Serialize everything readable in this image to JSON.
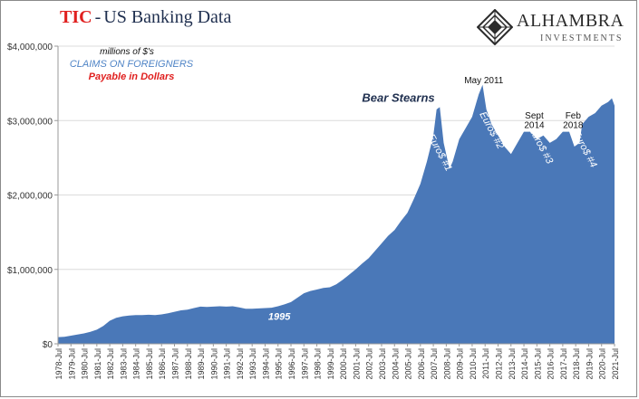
{
  "header": {
    "title_red": "TIC",
    "title_sep": "-",
    "title_rest": "US Banking Data"
  },
  "logo": {
    "name": "ALHAMBRA",
    "subtitle": "INVESTMENTS"
  },
  "notes": {
    "units": "millions of $'s",
    "series_label": "CLAIMS ON FOREIGNERS",
    "series_sublabel": "Payable in Dollars"
  },
  "colors": {
    "area": "#4a78b8",
    "title_red": "#e0201f",
    "navy": "#1f2f4f",
    "series_label": "#4f84c6",
    "sublabel_red": "#e0201f"
  },
  "chart_data": {
    "type": "area",
    "title": "TIC - US Banking Data",
    "ylim": [
      0,
      4000000
    ],
    "y_ticks": [
      0,
      1000000,
      2000000,
      3000000,
      4000000
    ],
    "y_tick_labels": [
      "$0",
      "$1,000,000",
      "$2,000,000",
      "$3,000,000",
      "$4,000,000"
    ],
    "x_tick_labels": [
      "1978-Jul",
      "1979-Jul",
      "1980-Jul",
      "1981-Jul",
      "1982-Jul",
      "1983-Jul",
      "1984-Jul",
      "1985-Jul",
      "1986-Jul",
      "1987-Jul",
      "1988-Jul",
      "1989-Jul",
      "1990-Jul",
      "1991-Jul",
      "1992-Jul",
      "1993-Jul",
      "1994-Jul",
      "1995-Jul",
      "1996-Jul",
      "1997-Jul",
      "1998-Jul",
      "1999-Jul",
      "2000-Jul",
      "2001-Jul",
      "2002-Jul",
      "2003-Jul",
      "2004-Jul",
      "2005-Jul",
      "2006-Jul",
      "2007-Jul",
      "2008-Jul",
      "2009-Jul",
      "2010-Jul",
      "2011-Jul",
      "2012-Jul",
      "2013-Jul",
      "2014-Jul",
      "2015-Jul",
      "2016-Jul",
      "2017-Jul",
      "2018-Jul",
      "2019-Jul",
      "2020-Jul",
      "2021-Jul"
    ],
    "series": [
      {
        "points": [
          [
            1978.5,
            90000
          ],
          [
            1979.0,
            95000
          ],
          [
            1979.5,
            110000
          ],
          [
            1980.0,
            125000
          ],
          [
            1980.5,
            140000
          ],
          [
            1981.0,
            160000
          ],
          [
            1981.5,
            190000
          ],
          [
            1982.0,
            240000
          ],
          [
            1982.5,
            310000
          ],
          [
            1983.0,
            350000
          ],
          [
            1983.5,
            370000
          ],
          [
            1984.0,
            380000
          ],
          [
            1984.5,
            385000
          ],
          [
            1985.0,
            385000
          ],
          [
            1985.5,
            390000
          ],
          [
            1986.0,
            385000
          ],
          [
            1986.5,
            395000
          ],
          [
            1987.0,
            410000
          ],
          [
            1987.5,
            430000
          ],
          [
            1988.0,
            450000
          ],
          [
            1988.5,
            460000
          ],
          [
            1989.0,
            480000
          ],
          [
            1989.5,
            500000
          ],
          [
            1990.0,
            495000
          ],
          [
            1990.5,
            500000
          ],
          [
            1991.0,
            505000
          ],
          [
            1991.5,
            500000
          ],
          [
            1992.0,
            505000
          ],
          [
            1992.5,
            490000
          ],
          [
            1993.0,
            470000
          ],
          [
            1993.5,
            470000
          ],
          [
            1994.0,
            475000
          ],
          [
            1994.5,
            480000
          ],
          [
            1995.0,
            485000
          ],
          [
            1995.5,
            505000
          ],
          [
            1996.0,
            530000
          ],
          [
            1996.5,
            560000
          ],
          [
            1997.0,
            620000
          ],
          [
            1997.5,
            680000
          ],
          [
            1998.0,
            710000
          ],
          [
            1998.5,
            730000
          ],
          [
            1999.0,
            750000
          ],
          [
            1999.5,
            760000
          ],
          [
            2000.0,
            800000
          ],
          [
            2000.5,
            860000
          ],
          [
            2001.0,
            930000
          ],
          [
            2001.5,
            1000000
          ],
          [
            2002.0,
            1080000
          ],
          [
            2002.5,
            1150000
          ],
          [
            2003.0,
            1250000
          ],
          [
            2003.5,
            1350000
          ],
          [
            2004.0,
            1450000
          ],
          [
            2004.5,
            1530000
          ],
          [
            2005.0,
            1650000
          ],
          [
            2005.5,
            1760000
          ],
          [
            2006.0,
            1950000
          ],
          [
            2006.5,
            2150000
          ],
          [
            2007.0,
            2450000
          ],
          [
            2007.5,
            2800000
          ],
          [
            2007.75,
            3150000
          ],
          [
            2008.0,
            3180000
          ],
          [
            2008.3,
            2700000
          ],
          [
            2008.75,
            2350000
          ],
          [
            2009.0,
            2450000
          ],
          [
            2009.5,
            2750000
          ],
          [
            2010.0,
            2900000
          ],
          [
            2010.5,
            3050000
          ],
          [
            2011.0,
            3350000
          ],
          [
            2011.3,
            3480000
          ],
          [
            2011.6,
            3150000
          ],
          [
            2012.0,
            2950000
          ],
          [
            2012.5,
            2800000
          ],
          [
            2013.0,
            2650000
          ],
          [
            2013.5,
            2550000
          ],
          [
            2014.0,
            2700000
          ],
          [
            2014.5,
            2850000
          ],
          [
            2015.0,
            2850000
          ],
          [
            2015.5,
            2750000
          ],
          [
            2016.0,
            2800000
          ],
          [
            2016.5,
            2700000
          ],
          [
            2017.0,
            2750000
          ],
          [
            2017.5,
            2850000
          ],
          [
            2018.0,
            2850000
          ],
          [
            2018.4,
            2650000
          ],
          [
            2018.8,
            2700000
          ],
          [
            2019.0,
            2950000
          ],
          [
            2019.5,
            3050000
          ],
          [
            2020.0,
            3100000
          ],
          [
            2020.5,
            3200000
          ],
          [
            2021.0,
            3250000
          ],
          [
            2021.3,
            3300000
          ],
          [
            2021.5,
            3200000
          ]
        ]
      }
    ],
    "annotations": [
      {
        "text": "Bear Stearns",
        "x": 2004.8,
        "y": 3250000,
        "style": "bold-italic-navy"
      },
      {
        "text": "May 2011",
        "x": 2011.4,
        "y": 3500000,
        "style": "plain"
      },
      {
        "text": "Sept",
        "x": 2015.3,
        "y": 3030000,
        "style": "plain"
      },
      {
        "text": "2014",
        "x": 2015.3,
        "y": 2900000,
        "style": "plain"
      },
      {
        "text": "Feb",
        "x": 2018.3,
        "y": 3030000,
        "style": "plain"
      },
      {
        "text": "2018",
        "x": 2018.3,
        "y": 2900000,
        "style": "plain"
      },
      {
        "text": "1995",
        "x": 1995.6,
        "y": 320000,
        "style": "bold-italic-white"
      },
      {
        "text": "Euro$ #1",
        "x": 2007.8,
        "y": 2550000,
        "style": "rotated-white"
      },
      {
        "text": "Euro$ #2",
        "x": 2011.8,
        "y": 2850000,
        "style": "rotated-white"
      },
      {
        "text": "Euro$ #3",
        "x": 2015.6,
        "y": 2650000,
        "style": "rotated-white"
      },
      {
        "text": "Euro$ #4",
        "x": 2019.0,
        "y": 2600000,
        "style": "rotated-white"
      }
    ]
  }
}
